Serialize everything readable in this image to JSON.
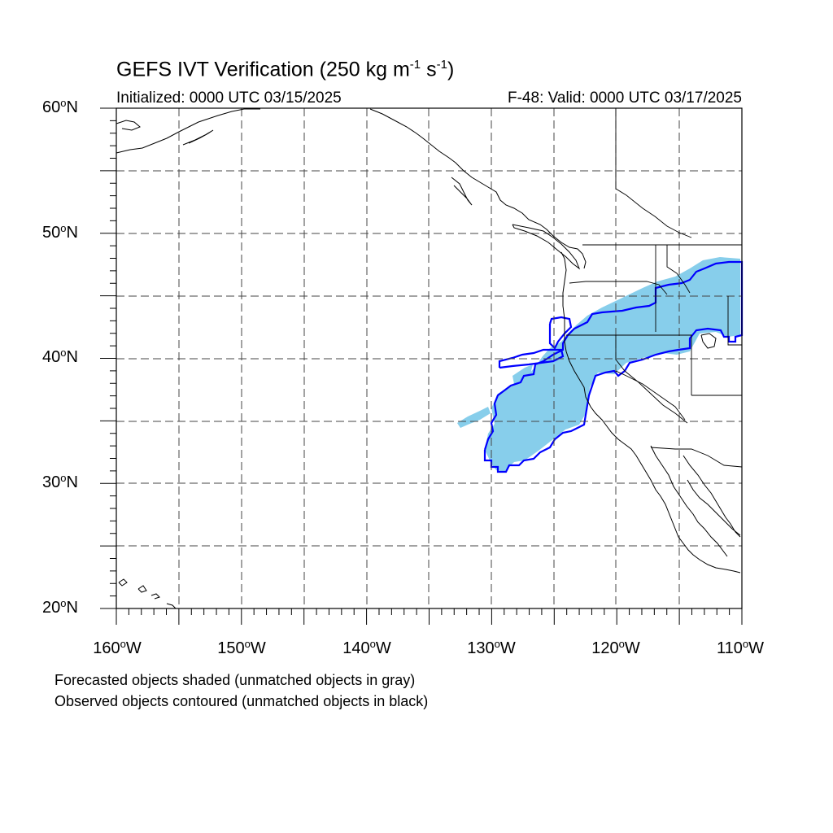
{
  "title": {
    "main": "GEFS IVT Verification (250 kg m",
    "sup1": "-1",
    "mid": "s",
    "sup2": "-1",
    "end": ")"
  },
  "initialized": "Initialized: 0000 UTC 03/15/2025",
  "valid": "F-48: Valid: 0000 UTC 03/17/2025",
  "lat_labels": [
    {
      "value": "60",
      "suffix": "N"
    },
    {
      "value": "50",
      "suffix": "N"
    },
    {
      "value": "40",
      "suffix": "N"
    },
    {
      "value": "30",
      "suffix": "N"
    },
    {
      "value": "20",
      "suffix": "N"
    }
  ],
  "lon_labels": [
    {
      "value": "160",
      "suffix": "W"
    },
    {
      "value": "150",
      "suffix": "W"
    },
    {
      "value": "140",
      "suffix": "W"
    },
    {
      "value": "130",
      "suffix": "W"
    },
    {
      "value": "120",
      "suffix": "W"
    },
    {
      "value": "110",
      "suffix": "W"
    }
  ],
  "notes": {
    "line1": "Forecasted objects shaded (unmatched objects in gray)",
    "line2": "Observed objects contoured (unmatched objects in black)"
  },
  "map": {
    "lon_range": [
      -160,
      -110
    ],
    "lat_range": [
      20,
      60
    ],
    "grid_spacing_deg": 5,
    "forecast_fill_color": "#87ceeb",
    "observed_contour_color": "#0000ff"
  }
}
